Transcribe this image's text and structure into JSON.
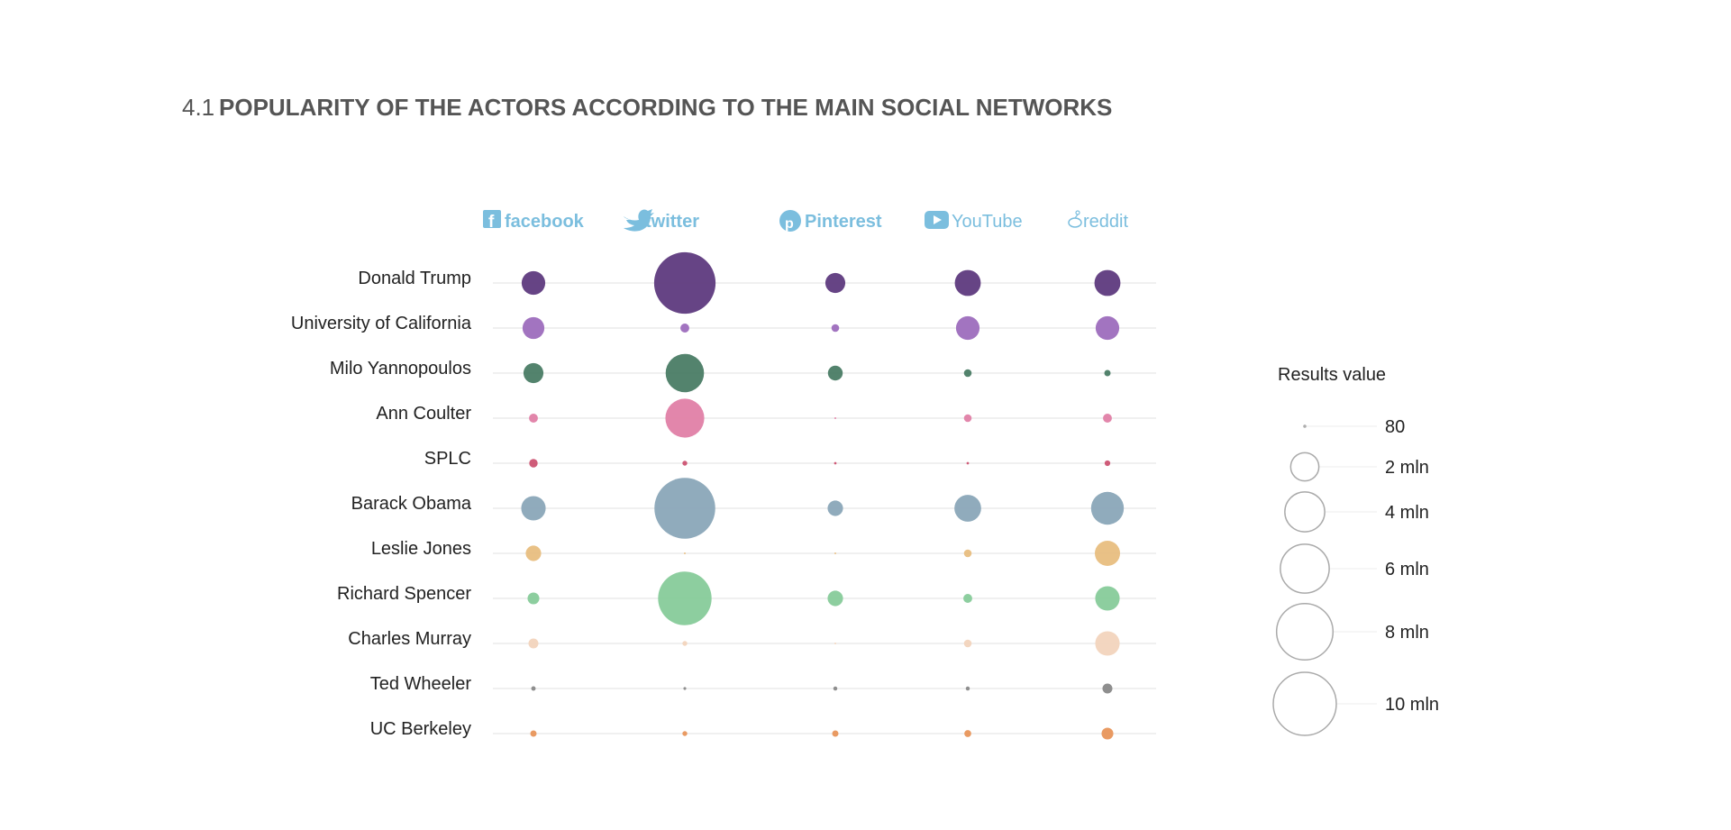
{
  "title": {
    "number": "4.1",
    "text": "POPULARITY OF THE ACTORS ACCORDING TO THE MAIN SOCIAL NETWORKS"
  },
  "legend": {
    "title": "Results value",
    "entries": [
      {
        "label": "80",
        "value": 80
      },
      {
        "label": "2 mln",
        "value": 2000000
      },
      {
        "label": "4 mln",
        "value": 4000000
      },
      {
        "label": "6 mln",
        "value": 6000000
      },
      {
        "label": "8 mln",
        "value": 8000000
      },
      {
        "label": "10 mln",
        "value": 10000000
      }
    ]
  },
  "networks": [
    {
      "name": "facebook",
      "label": "facebook",
      "icon": "facebook-logo-icon"
    },
    {
      "name": "twitter",
      "label": "twitter",
      "icon": "twitter-bird-icon"
    },
    {
      "name": "pinterest",
      "label": "Pinterest",
      "icon": "pinterest-logo-icon"
    },
    {
      "name": "youtube",
      "label": "YouTube",
      "icon": "youtube-play-icon"
    },
    {
      "name": "reddit",
      "label": "reddit",
      "icon": "reddit-alien-icon"
    }
  ],
  "colors": {
    "network_label": "#7bbede",
    "title": "#555555"
  },
  "chart_data": {
    "type": "bubble",
    "title": "4.1 POPULARITY OF THE ACTORS ACCORDING TO THE MAIN SOCIAL NETWORKS",
    "columns": [
      "facebook",
      "twitter",
      "Pinterest",
      "YouTube",
      "reddit"
    ],
    "rows": [
      {
        "name": "Donald Trump",
        "color": "#5e3a7e",
        "values": [
          1400000,
          9500000,
          1000000,
          1700000,
          1700000
        ]
      },
      {
        "name": "University of California",
        "color": "#9d6dbd",
        "values": [
          1200000,
          200000,
          150000,
          1400000,
          1400000
        ]
      },
      {
        "name": "Milo Yannopoulos",
        "color": "#4a7c65",
        "values": [
          1000000,
          3700000,
          550000,
          150000,
          100000
        ]
      },
      {
        "name": "Ann Coulter",
        "color": "#e07fa6",
        "values": [
          200000,
          3800000,
          8000,
          150000,
          200000
        ]
      },
      {
        "name": "SPLC",
        "color": "#cc5372",
        "values": [
          180000,
          60000,
          15000,
          15000,
          80000
        ]
      },
      {
        "name": "Barack Obama",
        "color": "#8aa6b8",
        "values": [
          1500000,
          9300000,
          600000,
          1800000,
          2700000
        ]
      },
      {
        "name": "Leslie Jones",
        "color": "#e8be80",
        "values": [
          600000,
          8000,
          8000,
          150000,
          1600000
        ]
      },
      {
        "name": "Richard Spencer",
        "color": "#87cb9a",
        "values": [
          350000,
          7200000,
          600000,
          200000,
          1500000
        ]
      },
      {
        "name": "Charles Murray",
        "color": "#f2d4bd",
        "values": [
          250000,
          60000,
          8000,
          150000,
          1500000
        ]
      },
      {
        "name": "Ted Wheeler",
        "color": "#888888",
        "values": [
          50000,
          20000,
          40000,
          40000,
          250000
        ]
      },
      {
        "name": "UC Berkeley",
        "color": "#e8955a",
        "values": [
          100000,
          60000,
          100000,
          120000,
          350000
        ]
      }
    ],
    "size_encoding": "area",
    "legend_placement": "right"
  }
}
